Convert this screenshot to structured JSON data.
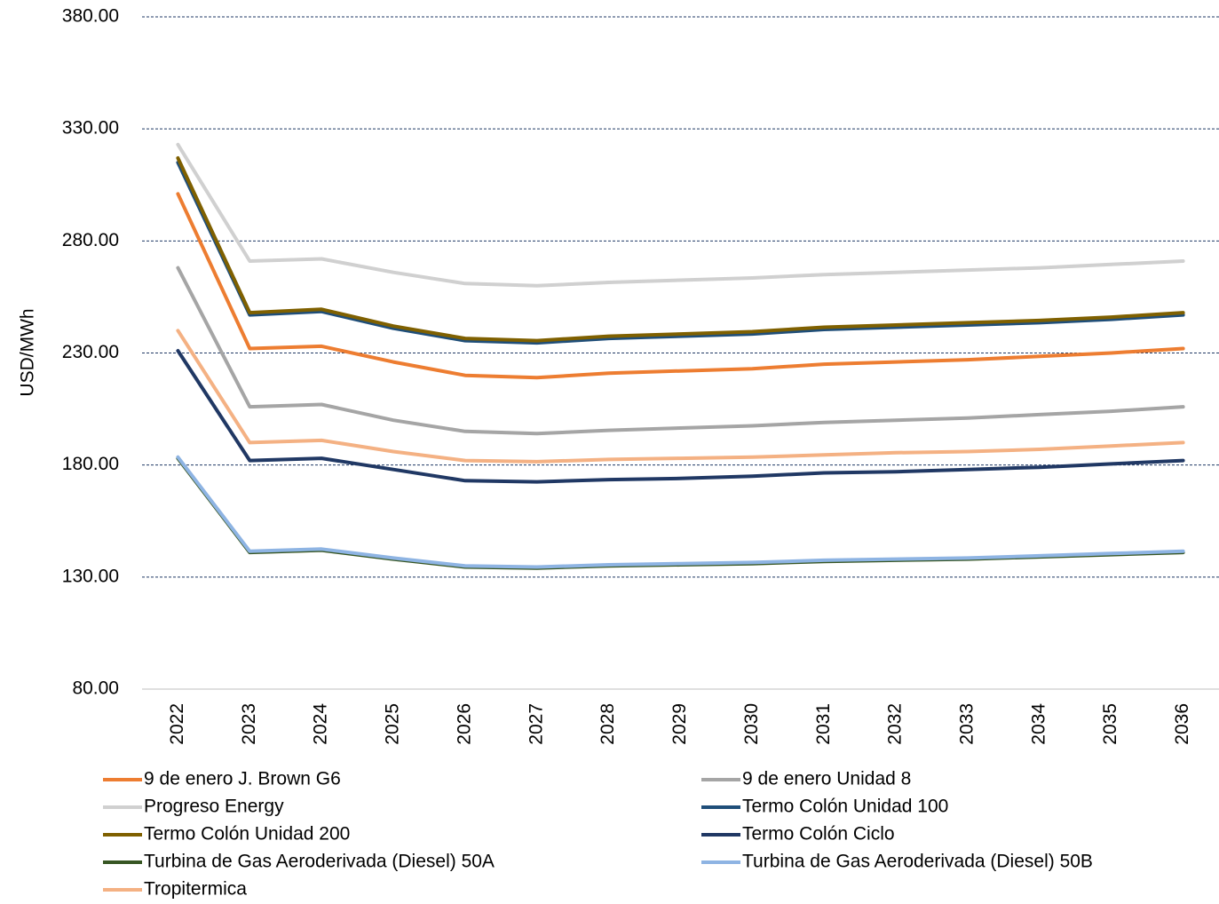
{
  "chart_data": {
    "type": "line",
    "title": "",
    "xlabel": "",
    "ylabel": "USD/MWh",
    "ylim": [
      80,
      380
    ],
    "yticks": [
      "80.00",
      "130.00",
      "180.00",
      "230.00",
      "280.00",
      "330.00",
      "380.00"
    ],
    "grid": true,
    "legend_position": "bottom",
    "categories": [
      "2022",
      "2023",
      "2024",
      "2025",
      "2026",
      "2027",
      "2028",
      "2029",
      "2030",
      "2031",
      "2032",
      "2033",
      "2034",
      "2035",
      "2036"
    ],
    "series": [
      {
        "name": "9 de enero J. Brown G6",
        "color": "#ED7D31",
        "values": [
          301,
          232,
          233,
          226,
          220,
          219,
          221,
          222,
          223,
          225,
          226,
          227,
          228.5,
          230,
          232
        ]
      },
      {
        "name": "9 de enero Unidad 8",
        "color": "#A5A5A5",
        "values": [
          268,
          206,
          207,
          200,
          195,
          194,
          195.5,
          196.5,
          197.5,
          199,
          200,
          201,
          202.5,
          204,
          206
        ]
      },
      {
        "name": "Progreso Energy",
        "color": "#D0D0D0",
        "values": [
          323,
          271,
          272,
          266,
          261,
          260,
          261.5,
          262.5,
          263.5,
          265,
          266,
          267,
          268,
          269.5,
          271
        ]
      },
      {
        "name": "Termo Colón Unidad 100",
        "color": "#1F4E79",
        "values": [
          315,
          247,
          248.5,
          241,
          235.5,
          234.5,
          236.5,
          237.5,
          238.5,
          240.5,
          241.5,
          242.5,
          243.5,
          245,
          247
        ]
      },
      {
        "name": "Termo Colón Unidad 200",
        "color": "#7F6000",
        "values": [
          317,
          248,
          249.5,
          242,
          236.5,
          235.5,
          237.5,
          238.5,
          239.5,
          241.5,
          242.5,
          243.5,
          244.5,
          246,
          248
        ]
      },
      {
        "name": "Termo Colón Ciclo",
        "color": "#203864",
        "values": [
          231,
          182,
          183,
          178,
          173,
          172.5,
          173.5,
          174,
          175,
          176.5,
          177,
          178,
          179,
          180.5,
          182
        ]
      },
      {
        "name": "Turbina de Gas Aeroderivada (Diesel) 50A",
        "color": "#375623",
        "values": [
          183,
          141,
          142,
          138,
          134.5,
          134,
          135,
          135.5,
          136,
          137,
          137.5,
          138,
          139,
          140,
          141
        ]
      },
      {
        "name": "Turbina de Gas Aeroderivada (Diesel) 50B",
        "color": "#8EB4E3",
        "values": [
          183.5,
          141.5,
          142.5,
          138.5,
          135,
          134.5,
          135.5,
          136,
          136.5,
          137.5,
          138,
          138.5,
          139.5,
          140.5,
          141.5
        ]
      },
      {
        "name": "Tropitermica",
        "color": "#F4B183",
        "values": [
          240,
          190,
          191,
          186,
          182,
          181.5,
          182.5,
          183,
          183.5,
          184.5,
          185.5,
          186,
          187,
          188.5,
          190
        ]
      }
    ]
  }
}
